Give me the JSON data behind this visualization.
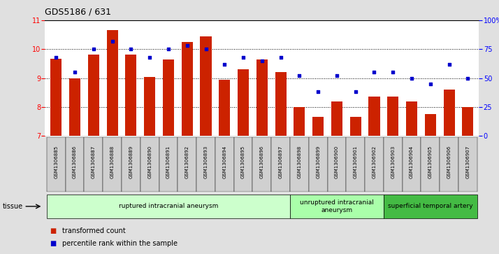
{
  "title": "GDS5186 / 631",
  "samples": [
    "GSM1306885",
    "GSM1306886",
    "GSM1306887",
    "GSM1306888",
    "GSM1306889",
    "GSM1306890",
    "GSM1306891",
    "GSM1306892",
    "GSM1306893",
    "GSM1306894",
    "GSM1306895",
    "GSM1306896",
    "GSM1306897",
    "GSM1306898",
    "GSM1306899",
    "GSM1306900",
    "GSM1306901",
    "GSM1306902",
    "GSM1306903",
    "GSM1306904",
    "GSM1306905",
    "GSM1306906",
    "GSM1306907"
  ],
  "bar_values": [
    9.68,
    9.0,
    9.82,
    10.65,
    9.82,
    9.05,
    9.65,
    10.25,
    10.45,
    8.95,
    9.3,
    9.65,
    9.2,
    8.0,
    7.65,
    8.2,
    7.65,
    8.35,
    8.35,
    8.2,
    7.75,
    8.6,
    8.0
  ],
  "percentile_values": [
    68,
    55,
    75,
    82,
    75,
    68,
    75,
    78,
    75,
    62,
    68,
    65,
    68,
    52,
    38,
    52,
    38,
    55,
    55,
    50,
    45,
    62,
    50
  ],
  "bar_color": "#cc2200",
  "dot_color": "#0000cc",
  "ylim_left": [
    7,
    11
  ],
  "ylim_right": [
    0,
    100
  ],
  "yticks_left": [
    7,
    8,
    9,
    10,
    11
  ],
  "yticks_right": [
    0,
    25,
    50,
    75,
    100
  ],
  "ytick_labels_right": [
    "0",
    "25",
    "50",
    "75",
    "100%"
  ],
  "groups": [
    {
      "label": "ruptured intracranial aneurysm",
      "start": 0,
      "end": 13,
      "color": "#ccffcc"
    },
    {
      "label": "unruptured intracranial\naneurysm",
      "start": 13,
      "end": 18,
      "color": "#aaffaa"
    },
    {
      "label": "superficial temporal artery",
      "start": 18,
      "end": 23,
      "color": "#44bb44"
    }
  ],
  "bg_color": "#e0e0e0",
  "plot_bg_color": "#ffffff",
  "xtick_bg_color": "#d0d0d0"
}
